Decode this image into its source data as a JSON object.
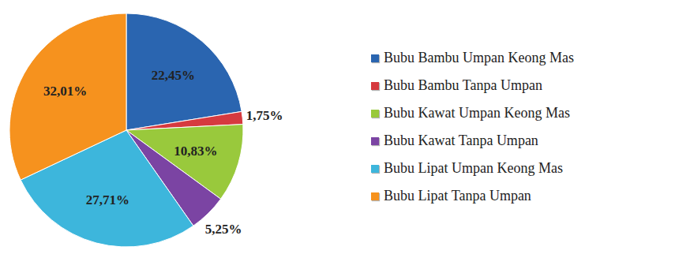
{
  "chart_data": {
    "type": "pie",
    "categories": [
      "Bubu Bambu Umpan Keong Mas",
      "Bubu Bambu Tanpa Umpan",
      "Bubu Kawat Umpan Keong Mas",
      "Bubu Kawat Tanpa Umpan",
      "Bubu Lipat Umpan Keong Mas",
      "Bubu Lipat Tanpa Umpan"
    ],
    "values": [
      22.45,
      1.75,
      10.83,
      5.25,
      27.71,
      32.01
    ],
    "value_labels": [
      "22,45%",
      "1,75%",
      "10,83%",
      "5,25%",
      "27,71%",
      "32,01%"
    ],
    "colors": [
      "#2a65b0",
      "#d63a3f",
      "#99c93c",
      "#7b44a3",
      "#3db6dc",
      "#f6921e"
    ],
    "data_labels": true,
    "legend": "right"
  }
}
